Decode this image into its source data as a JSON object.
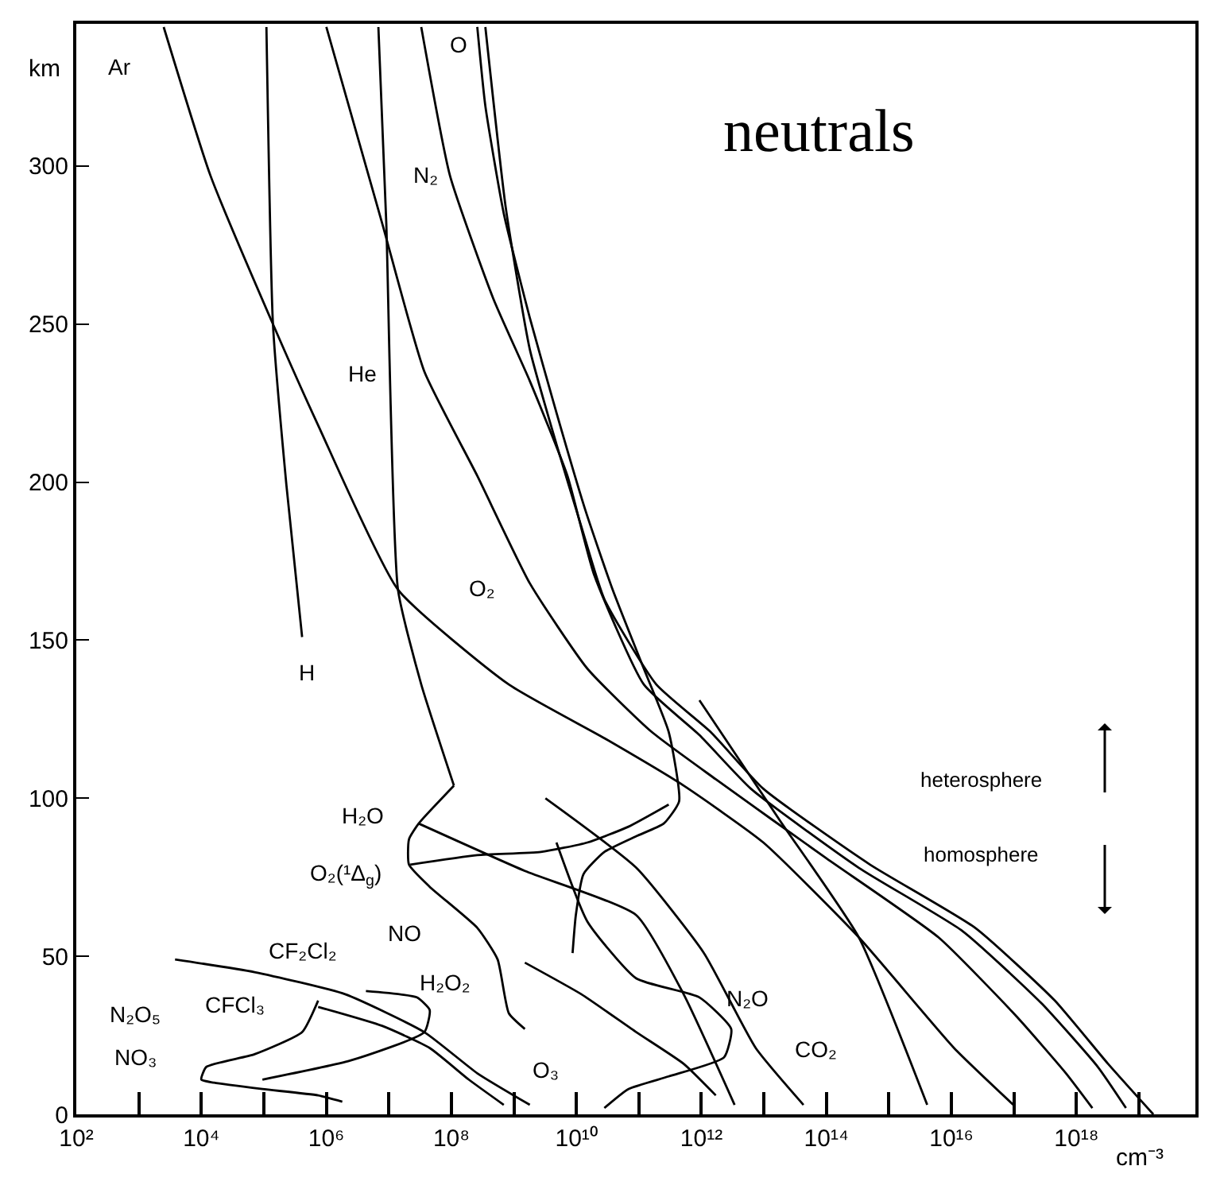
{
  "chart_data": {
    "type": "line",
    "title": "neutrals",
    "xlabel": "cm⁻³",
    "ylabel": "km",
    "log": "x",
    "xlim": [
      100,
      8e+19
    ],
    "ylim": [
      0,
      345
    ],
    "xticks": [
      {
        "value": 100,
        "label": "10²"
      },
      {
        "value": 1000,
        "label": null
      },
      {
        "value": 10000,
        "label": "10⁴"
      },
      {
        "value": 100000,
        "label": null
      },
      {
        "value": 1000000,
        "label": "10⁶"
      },
      {
        "value": 10000000,
        "label": null
      },
      {
        "value": 100000000,
        "label": "10⁸"
      },
      {
        "value": 1000000000,
        "label": null
      },
      {
        "value": 10000000000,
        "label": "10¹⁰"
      },
      {
        "value": 100000000000,
        "label": null
      },
      {
        "value": 1000000000000,
        "label": "10¹²"
      },
      {
        "value": 10000000000000,
        "label": null
      },
      {
        "value": 100000000000000,
        "label": "10¹⁴"
      },
      {
        "value": 1000000000000000,
        "label": null
      },
      {
        "value": 10000000000000000,
        "label": "10¹⁶"
      },
      {
        "value": 100000000000000000,
        "label": null
      },
      {
        "value": 1000000000000000000,
        "label": "10¹⁸"
      },
      {
        "value": 10000000000000000000,
        "label": null
      }
    ],
    "yticks": [
      0,
      50,
      100,
      150,
      200,
      250,
      300
    ],
    "series": [
      {
        "color": "#000000",
        "x": [
          2500.0,
          14000.0,
          140000.0,
          740000.0,
          14000000.0,
          830000000.0,
          28000000000.0,
          520000000000.0,
          9800000000000.0,
          330000000000000.0,
          1.1e+16,
          9.8e+16
        ],
        "values": [
          344,
          297,
          250,
          218,
          166,
          136,
          119,
          104,
          86,
          56,
          21,
          3
        ]
      },
      {
        "color": "#000000",
        "x": [
          110000.0,
          140000.0,
          230000.0,
          410000.0
        ],
        "values": [
          344,
          250,
          199,
          151
        ]
      },
      {
        "color": "#000000",
        "x": [
          6800000.0,
          9100000.0,
          14000000.0,
          33000000.0,
          110000000.0
        ],
        "values": [
          344,
          282,
          166,
          136,
          104
        ]
      },
      {
        "color": "#000000",
        "x": [
          110000000.0,
          30000000.0,
          21000000.0,
          21000000.0,
          45000000.0,
          260000000.0,
          550000000.0,
          830000000.0,
          1500000000.0
        ],
        "values": [
          104,
          92,
          87,
          79,
          72,
          59,
          49,
          32,
          27
        ]
      },
      {
        "color": "#000000",
        "x": [
          22000000.0,
          260000000.0,
          2700000000.0,
          15000000000.0,
          68000000000.0,
          300000000000.0
        ],
        "values": [
          79,
          82,
          83,
          86,
          91,
          98
        ]
      },
      {
        "color": "#000000",
        "x": [
          30000000.0,
          1500000000.0,
          91000000000.0,
          520000000000.0,
          3400000000000.0
        ],
        "values": [
          92,
          77,
          63,
          38,
          3
        ]
      },
      {
        "color": "#000000",
        "x": [
          3200000000.0,
          91000000000.0,
          1100000000000.0,
          7400000000000.0,
          43000000000000.0
        ],
        "values": [
          100,
          78,
          51,
          21,
          3
        ]
      },
      {
        "color": "#000000",
        "x": [
          930000000000.0,
          18000000000000.0,
          330000000000000.0,
          4100000000000000.0
        ],
        "values": [
          131,
          93,
          56,
          3
        ]
      },
      {
        "color": "#000000",
        "x": [
          350000000.0,
          740000000.0,
          1800000000.0,
          4800000000.0,
          12000000000.0,
          28000000000.0,
          190000000000.0,
          1400000000000.0,
          9800000000000.0,
          500000000000000.0,
          2.4e+16,
          4.5e+17,
          3.2e+18,
          1.7e+19
        ],
        "values": [
          344,
          287,
          242,
          212,
          186,
          163,
          136,
          121,
          103,
          79,
          59,
          36,
          16,
          0
        ]
      },
      {
        "color": "#000000",
        "x": [
          33000000.0,
          95000000.0,
          470000000.0,
          1800000000.0,
          7200000000.0,
          19000000000.0,
          120000000000.0,
          930000000000.0,
          6200000000000.0,
          330000000000000.0,
          1.5e+16,
          2.8e+17,
          2.2e+18,
          6.2e+18
        ],
        "values": [
          344,
          297,
          258,
          232,
          202,
          171,
          136,
          120,
          103,
          78,
          58,
          35,
          15,
          2
        ]
      },
      {
        "color": "#000000",
        "x": [
          1000000.0,
          7800000.0,
          37000000.0,
          260000000.0,
          1800000000.0,
          15000000000.0,
          160000000000.0,
          1700000000000.0,
          100000000000000.0,
          6200000000000000.0,
          1.1e+17,
          6.8e+17,
          1.8e+18
        ],
        "values": [
          344,
          282,
          235,
          202,
          168,
          141,
          121,
          106,
          81,
          56,
          31,
          13,
          2
        ]
      },
      {
        "color": "#000000",
        "x": [
          260000000.0,
          350000000.0,
          690000000.0,
          1800000000.0,
          4800000000.0,
          14000000000.0,
          38000000000.0,
          120000000000.0,
          300000000000.0,
          440000000000.0,
          250000000000.0,
          91000000000.0,
          28000000000.0,
          13000000000.0,
          9800000000.0,
          8700000000.0
        ],
        "values": [
          344,
          319,
          285,
          252,
          222,
          191,
          166,
          141,
          121,
          99,
          92,
          88,
          83,
          76,
          63,
          51
        ]
      },
      {
        "color": "#000000",
        "x": [
          4800000000.0,
          15000000000.0,
          91000000000.0,
          930000000000.0,
          3000000000000.0,
          2300000000000.0,
          300000000000.0,
          68000000000.0,
          28000000000.0
        ],
        "values": [
          86,
          61,
          43,
          37,
          27,
          18,
          12,
          8,
          2
        ]
      },
      {
        "color": "#000000",
        "x": [
          1500000000.0,
          12000000000.0,
          91000000000.0,
          520000000000.0,
          1700000000000.0
        ],
        "values": [
          48,
          38,
          26,
          16,
          6
        ]
      },
      {
        "color": "#000000",
        "x": [
          3800.0,
          71000.0,
          2000000.0,
          37000000.0,
          260000000.0,
          1800000000.0
        ],
        "values": [
          49,
          45,
          38,
          26,
          13,
          3
        ]
      },
      {
        "color": "#000000",
        "x": [
          740000.0,
          7800000.0,
          45000000.0,
          190000000.0,
          690000000.0
        ],
        "values": [
          34,
          28,
          21,
          11,
          3
        ]
      },
      {
        "color": "#000000",
        "x": [
          740000.0,
          410000.0,
          71000.0,
          12000.0,
          10000.0,
          16000.0,
          95000.0,
          740000.0,
          1800000.0
        ],
        "values": [
          36,
          26,
          19,
          15,
          11,
          10,
          8,
          6,
          4
        ]
      },
      {
        "color": "#000000",
        "x": [
          95000.0,
          2400000.0,
          37000000.0,
          45000000.0,
          28000000.0,
          4300000.0
        ],
        "values": [
          11,
          17,
          26,
          33,
          37,
          39
        ]
      }
    ],
    "annotations": [
      "Ar",
      "H",
      "He",
      "N₂",
      "O",
      "O₂",
      "H₂O",
      "O₂(¹Δ$_{g}$)",
      "NO",
      "H₂O₂",
      "CF₂Cl₂",
      "CFCl₃",
      "N₂O₅",
      "NO₃",
      "O₃",
      "N₂O",
      "CO₂",
      "heterosphere",
      "homosphere"
    ]
  }
}
